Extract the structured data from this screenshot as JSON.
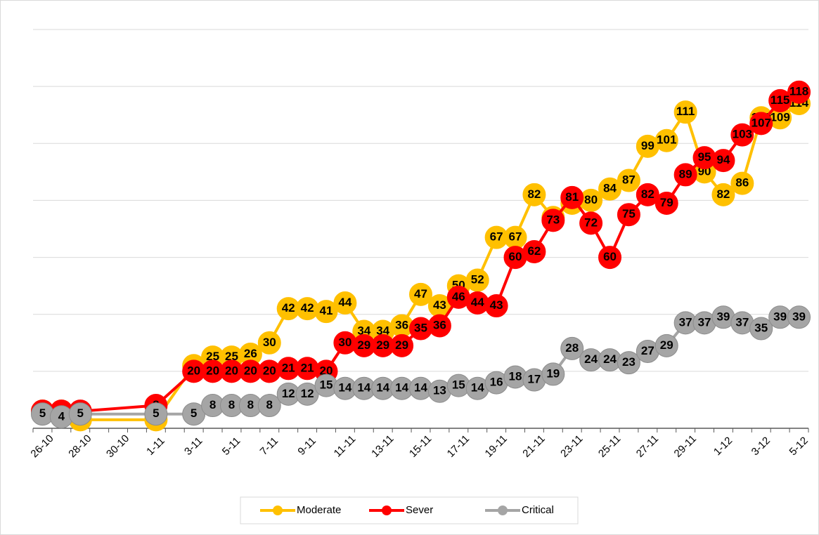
{
  "chart_data": {
    "type": "line",
    "categories": [
      "26-10",
      null,
      "28-10",
      null,
      "30-10",
      null,
      "1-11",
      null,
      "3-11",
      null,
      "5-11",
      null,
      "7-11",
      null,
      "9-11",
      null,
      "11-11",
      null,
      "13-11",
      null,
      "15-11",
      null,
      "17-11",
      null,
      "19-11",
      null,
      "21-11",
      null,
      "23-11",
      null,
      "25-11",
      null,
      "27-11",
      null,
      "29-11",
      null,
      "1-12",
      null,
      "3-12",
      null,
      "5-12"
    ],
    "series": [
      {
        "name": "Moderate",
        "color": "#ffc000",
        "values": [
          6,
          6,
          3,
          null,
          null,
          null,
          3,
          null,
          22,
          25,
          25,
          26,
          30,
          42,
          42,
          41,
          44,
          34,
          34,
          36,
          47,
          43,
          50,
          52,
          67,
          67,
          82,
          74,
          79,
          80,
          84,
          87,
          99,
          101,
          111,
          90,
          82,
          86,
          109,
          109,
          114
        ]
      },
      {
        "name": "Sever",
        "color": "#ff0000",
        "values": [
          6,
          6,
          6,
          null,
          null,
          null,
          8,
          null,
          20,
          20,
          20,
          20,
          20,
          21,
          21,
          20,
          30,
          29,
          29,
          29,
          35,
          36,
          46,
          44,
          43,
          60,
          62,
          73,
          81,
          72,
          60,
          75,
          82,
          79,
          89,
          95,
          94,
          103,
          107,
          115,
          118
        ]
      },
      {
        "name": "Critical",
        "color": "#a5a5a5",
        "values": [
          5,
          4,
          5,
          null,
          null,
          null,
          5,
          null,
          5,
          8,
          8,
          8,
          8,
          12,
          12,
          15,
          14,
          14,
          14,
          14,
          14,
          13,
          15,
          14,
          16,
          18,
          17,
          19,
          28,
          24,
          24,
          23,
          27,
          29,
          37,
          37,
          39,
          37,
          35,
          39,
          39
        ]
      }
    ],
    "ylim": [
      0,
      140
    ],
    "yticks": [
      0,
      20,
      40,
      60,
      80,
      100,
      120,
      140
    ],
    "grid": true,
    "legend": "bottom"
  }
}
